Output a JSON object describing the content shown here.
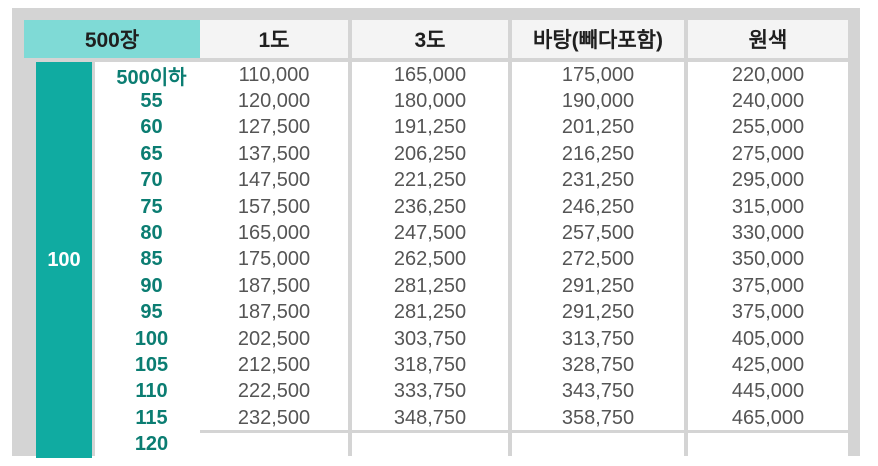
{
  "header": {
    "quantity_label": "500장",
    "columns": [
      "1도",
      "3도",
      "바탕(빼다포함)",
      "원색"
    ]
  },
  "side_label": "100",
  "sizes": [
    "500이하",
    "55",
    "60",
    "65",
    "70",
    "75",
    "80",
    "85",
    "90",
    "95",
    "100",
    "105",
    "110",
    "115",
    "120"
  ],
  "rows": [
    [
      "110,000",
      "165,000",
      "175,000",
      "220,000"
    ],
    [
      "120,000",
      "180,000",
      "190,000",
      "240,000"
    ],
    [
      "127,500",
      "191,250",
      "201,250",
      "255,000"
    ],
    [
      "137,500",
      "206,250",
      "216,250",
      "275,000"
    ],
    [
      "147,500",
      "221,250",
      "231,250",
      "295,000"
    ],
    [
      "157,500",
      "236,250",
      "246,250",
      "315,000"
    ],
    [
      "165,000",
      "247,500",
      "257,500",
      "330,000"
    ],
    [
      "175,000",
      "262,500",
      "272,500",
      "350,000"
    ],
    [
      "187,500",
      "281,250",
      "291,250",
      "375,000"
    ],
    [
      "187,500",
      "281,250",
      "291,250",
      "375,000"
    ],
    [
      "202,500",
      "303,750",
      "313,750",
      "405,000"
    ],
    [
      "212,500",
      "318,750",
      "328,750",
      "425,000"
    ],
    [
      "222,500",
      "333,750",
      "343,750",
      "445,000"
    ],
    [
      "232,500",
      "348,750",
      "358,750",
      "465,000"
    ]
  ],
  "colors": {
    "header_accent": "#7fdad6",
    "side_band": "#10aba1",
    "size_text": "#0b7d72",
    "grid": "#d4d4d4"
  }
}
